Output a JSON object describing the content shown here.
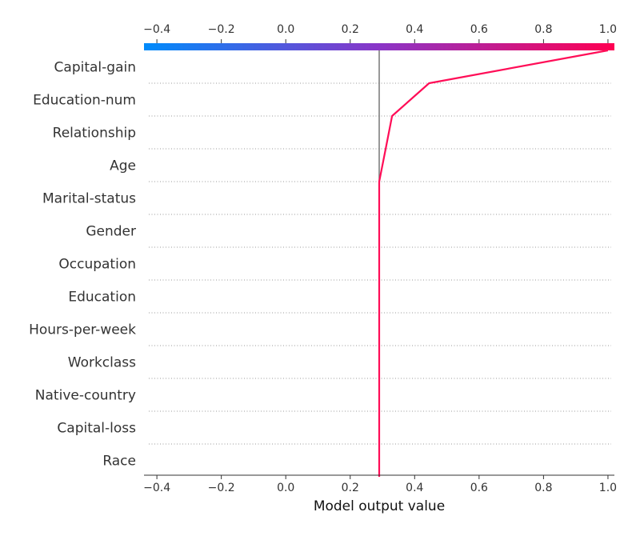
{
  "chart_data": {
    "type": "line",
    "title": "",
    "xlabel": "Model output value",
    "ylabel": "",
    "xlim": [
      -0.44,
      1.02
    ],
    "x_ticks": [
      "−0.4",
      "−0.2",
      "0.0",
      "0.2",
      "0.4",
      "0.6",
      "0.8",
      "1.0"
    ],
    "x_tick_values": [
      -0.4,
      -0.2,
      0.0,
      0.2,
      0.4,
      0.6,
      0.8,
      1.0
    ],
    "base_value": 0.29,
    "features": [
      "Capital-gain",
      "Education-num",
      "Relationship",
      "Age",
      "Marital-status",
      "Gender",
      "Occupation",
      "Education",
      "Hours-per-week",
      "Workclass",
      "Native-country",
      "Capital-loss",
      "Race"
    ],
    "series": [
      {
        "values": [
          1.0,
          0.445,
          0.33,
          0.31,
          0.29,
          0.29,
          0.29,
          0.29,
          0.29,
          0.29,
          0.29,
          0.29,
          0.29,
          0.29
        ]
      }
    ],
    "grid": true,
    "colorbar": {
      "top_color": "#008bfb",
      "mid_color": "#8a35c7",
      "end_color": "#ff0052"
    },
    "line_color": "#ff0d57",
    "base_line_color": "#777777"
  }
}
